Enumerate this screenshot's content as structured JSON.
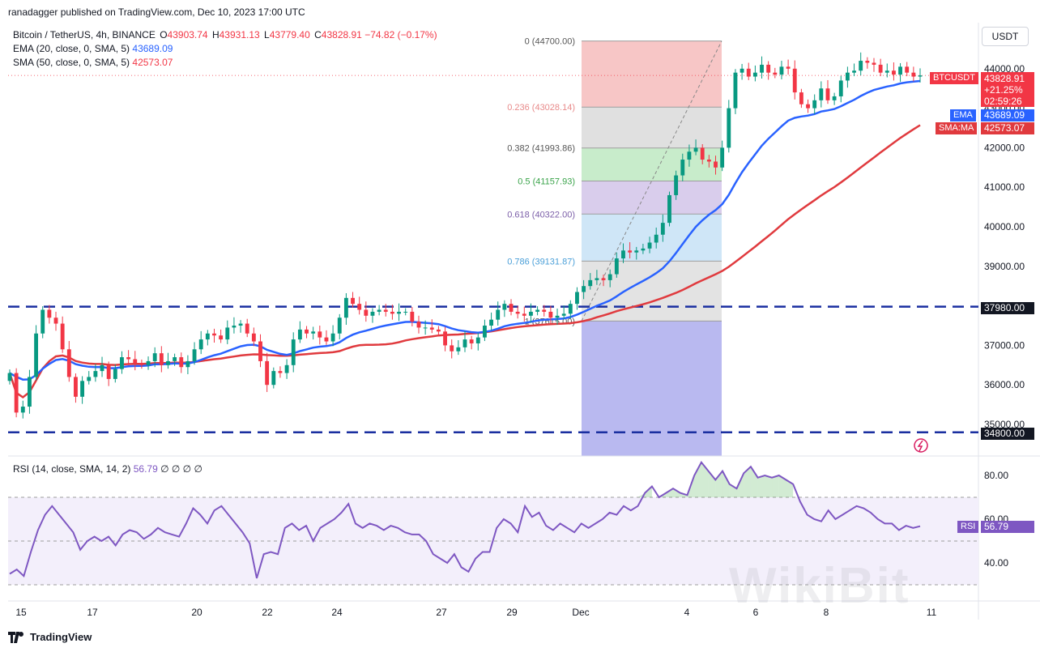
{
  "header": {
    "text": "ranadagger published on TradingView.com, Dec 10, 2023 17:00 UTC"
  },
  "legend": {
    "symbol": "Bitcoin / TetherUS, 4h, BINANCE",
    "ohlc": {
      "o_label": "O",
      "o": "43903.74",
      "h_label": "H",
      "h": "43931.13",
      "l_label": "L",
      "l": "43779.40",
      "c_label": "C",
      "c": "43828.91",
      "chg": "−74.82 (−0.17%)"
    },
    "ema": {
      "label": "EMA (20, close, 0, SMA, 5)",
      "value": "43689.09",
      "color": "#2962ff"
    },
    "sma": {
      "label": "SMA (50, close, 0, SMA, 5)",
      "value": "42573.07",
      "color": "#e03a3e"
    }
  },
  "currency": "USDT",
  "price_tags": {
    "symbol": "BTCUSDT",
    "price": "43828.91",
    "pct": "+21.25%",
    "countdown": "02:59:26",
    "ema_label": "EMA",
    "ema_value": "43689.09",
    "sma_label": "SMA:MA",
    "sma_value": "42573.07",
    "support_high": "37980.00",
    "support_low": "34800.00"
  },
  "rsi": {
    "legend": "RSI (14, close, SMA, 14, 2)",
    "value": "56.79",
    "zeros": "∅ ∅ ∅ ∅",
    "tag_label": "RSI",
    "tag_value": "56.79",
    "axis_ticks": [
      "80.00",
      "60.00",
      "40.00"
    ],
    "color": "#7e57c2"
  },
  "brand": "TradingView",
  "watermark": "WikiBit",
  "chart_data": {
    "type": "candlestick",
    "y_ticks": [
      "44000.00",
      "43000.00",
      "42000.00",
      "41000.00",
      "40000.00",
      "39000.00",
      "38000.00",
      "37000.00",
      "36000.00",
      "35000.00"
    ],
    "x_ticks": [
      "15",
      "17",
      "20",
      "22",
      "24",
      "27",
      "29",
      "Dec",
      "4",
      "6",
      "8",
      "11"
    ],
    "horizontal_levels": [
      37980,
      34800
    ],
    "fibonacci": [
      {
        "label": "0 (44700.00)",
        "price": 44700
      },
      {
        "label": "0.236 (43028.14)",
        "price": 43028.14
      },
      {
        "label": "0.382 (41993.86)",
        "price": 41993.86
      },
      {
        "label": "0.5 (41157.93)",
        "price": 41157.93
      },
      {
        "label": "0.618 (40322.00)",
        "price": 40322.0
      },
      {
        "label": "0.786 (39131.87)",
        "price": 39131.87
      },
      {
        "label": "1 (37615.00)",
        "price": 37615.0
      }
    ],
    "fib_colors": [
      "#f7c6c6",
      "#e0e0e0",
      "#c8eccb",
      "#d9cdec",
      "#cfe6f7",
      "#e3e3e3",
      "#b9b9f0"
    ],
    "fib_label_colors": [
      "#555555",
      "#e88a8a",
      "#555555",
      "#3aa34a",
      "#7b5ea8",
      "#4a9fd8",
      "#555555"
    ],
    "closes": [
      36300,
      35300,
      35450,
      36200,
      37300,
      37900,
      37700,
      37550,
      36900,
      36200,
      35700,
      36100,
      36200,
      36350,
      36500,
      36150,
      36400,
      36700,
      36650,
      36550,
      36500,
      36600,
      36800,
      36500,
      36600,
      36700,
      36450,
      36600,
      36900,
      37150,
      37300,
      37250,
      37150,
      37450,
      37500,
      37550,
      37300,
      37100,
      36600,
      36000,
      36350,
      36300,
      36500,
      37150,
      37400,
      37300,
      37350,
      37200,
      37100,
      37300,
      37700,
      38200,
      38050,
      37900,
      37750,
      37850,
      37900,
      37850,
      37800,
      37850,
      37850,
      37600,
      37450,
      37450,
      37400,
      37350,
      37000,
      36850,
      36950,
      37150,
      37050,
      37200,
      37500,
      37650,
      37900,
      38050,
      37850,
      37800,
      37750,
      37850,
      37900,
      37850,
      37700,
      37750,
      37800,
      38050,
      38350,
      38500,
      38650,
      38700,
      38650,
      38800,
      39200,
      39400,
      39350,
      39400,
      39450,
      39600,
      39800,
      40100,
      40800,
      41300,
      41700,
      41900,
      42000,
      41700,
      41650,
      41500,
      42000,
      43000,
      43900,
      44000,
      43800,
      43900,
      44100,
      43900,
      43850,
      44050,
      44000,
      43400,
      43100,
      43000,
      43200,
      43500,
      43200,
      43300,
      43700,
      43900,
      43950,
      44200,
      44150,
      44100,
      43900,
      43950,
      43850,
      44050,
      43900,
      43800,
      43829
    ],
    "ema20_last": 43689.09,
    "sma50_last": 42573.07,
    "rsi_values": [
      35,
      37,
      34,
      45,
      55,
      62,
      66,
      62,
      58,
      54,
      46,
      50,
      52,
      50,
      52,
      48,
      53,
      55,
      54,
      51,
      53,
      56,
      54,
      53,
      52,
      58,
      65,
      62,
      58,
      64,
      66,
      62,
      58,
      54,
      49,
      33,
      44,
      45,
      44,
      56,
      58,
      55,
      57,
      50,
      56,
      58,
      60,
      63,
      67,
      58,
      56,
      58,
      57,
      55,
      57,
      56,
      54,
      53,
      53,
      50,
      44,
      42,
      40,
      44,
      38,
      36,
      42,
      45,
      45,
      56,
      60,
      58,
      54,
      66,
      61,
      63,
      57,
      55,
      58,
      56,
      54,
      58,
      56,
      58,
      60,
      63,
      62,
      66,
      64,
      66,
      72,
      75,
      70,
      72,
      74,
      72,
      71,
      80,
      86,
      82,
      78,
      82,
      76,
      74,
      81,
      84,
      79,
      80,
      79,
      80,
      78,
      76,
      68,
      62,
      60,
      59,
      64,
      60,
      62,
      64,
      66,
      65,
      63,
      60,
      58,
      58,
      55,
      57,
      56,
      56.79
    ]
  }
}
